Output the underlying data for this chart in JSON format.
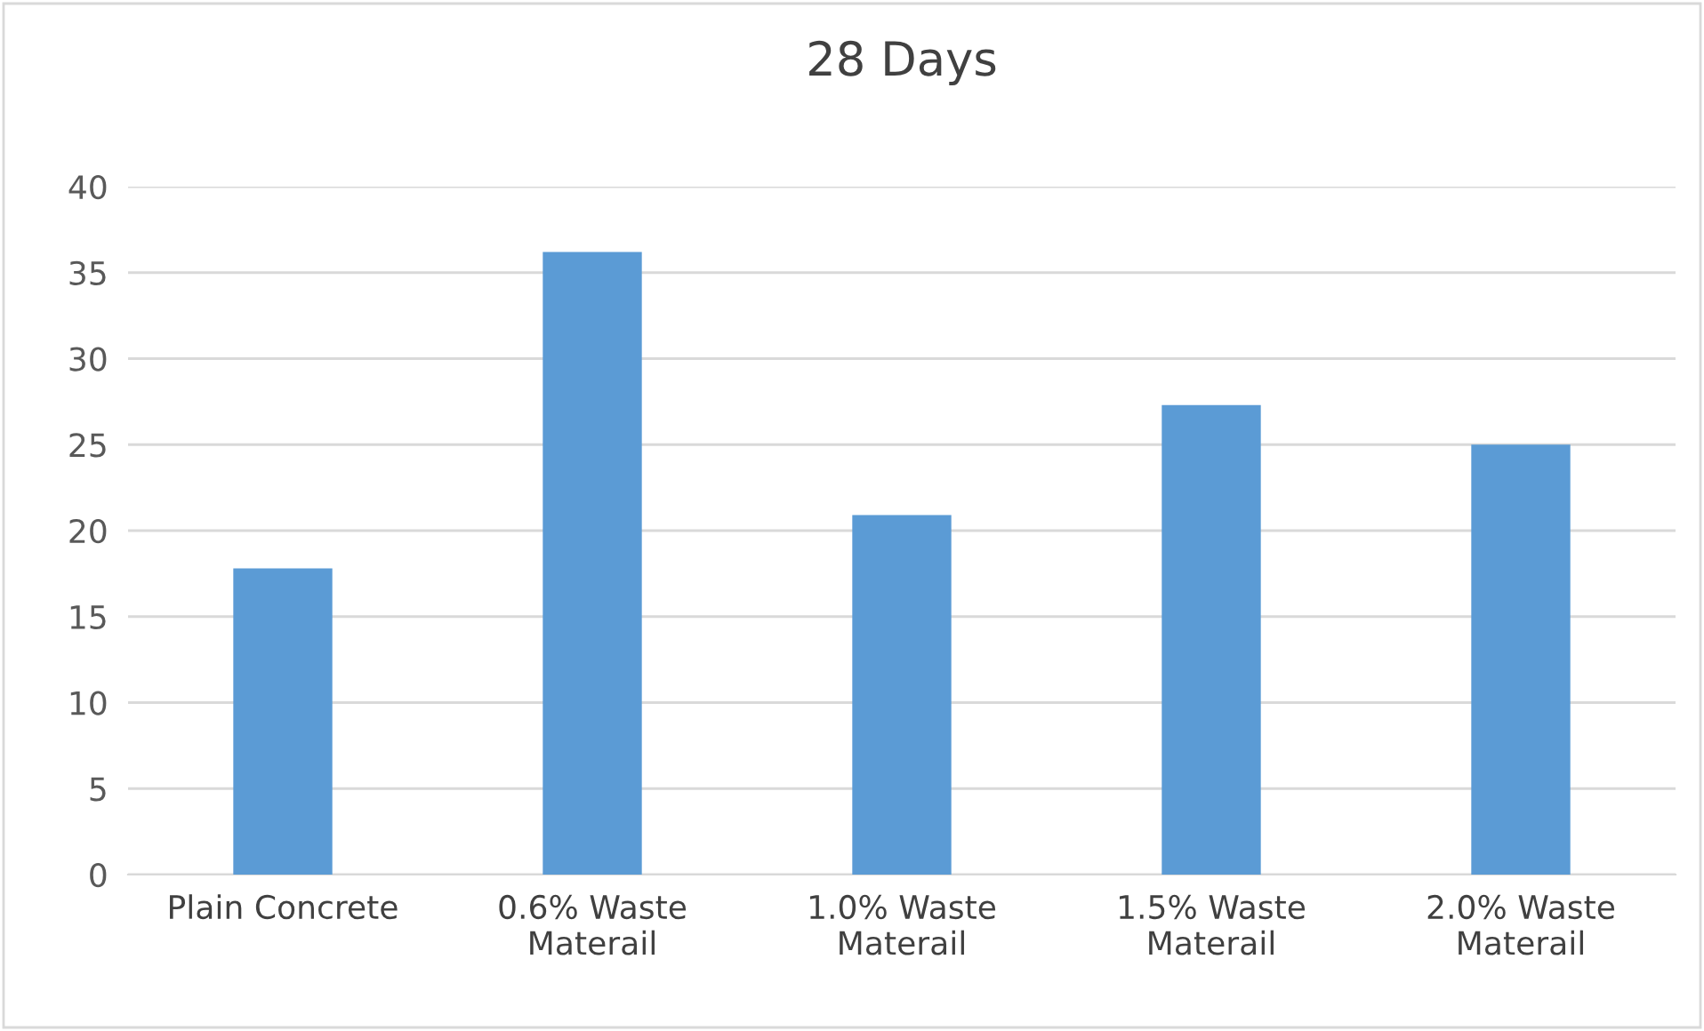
{
  "chart_data": {
    "type": "bar",
    "title": "28 Days",
    "categories": [
      "Plain Concrete",
      "0.6% Waste\nMaterail",
      "1.0% Waste\nMaterail",
      "1.5% Waste\nMaterail",
      "2.0% Waste\nMaterail"
    ],
    "values": [
      17.8,
      36.2,
      20.9,
      27.3,
      25.0
    ],
    "color": "#5b9bd5",
    "ylim": [
      0,
      40
    ],
    "yticks": [
      0,
      5,
      10,
      15,
      20,
      25,
      30,
      35,
      40
    ],
    "grid": "y"
  }
}
